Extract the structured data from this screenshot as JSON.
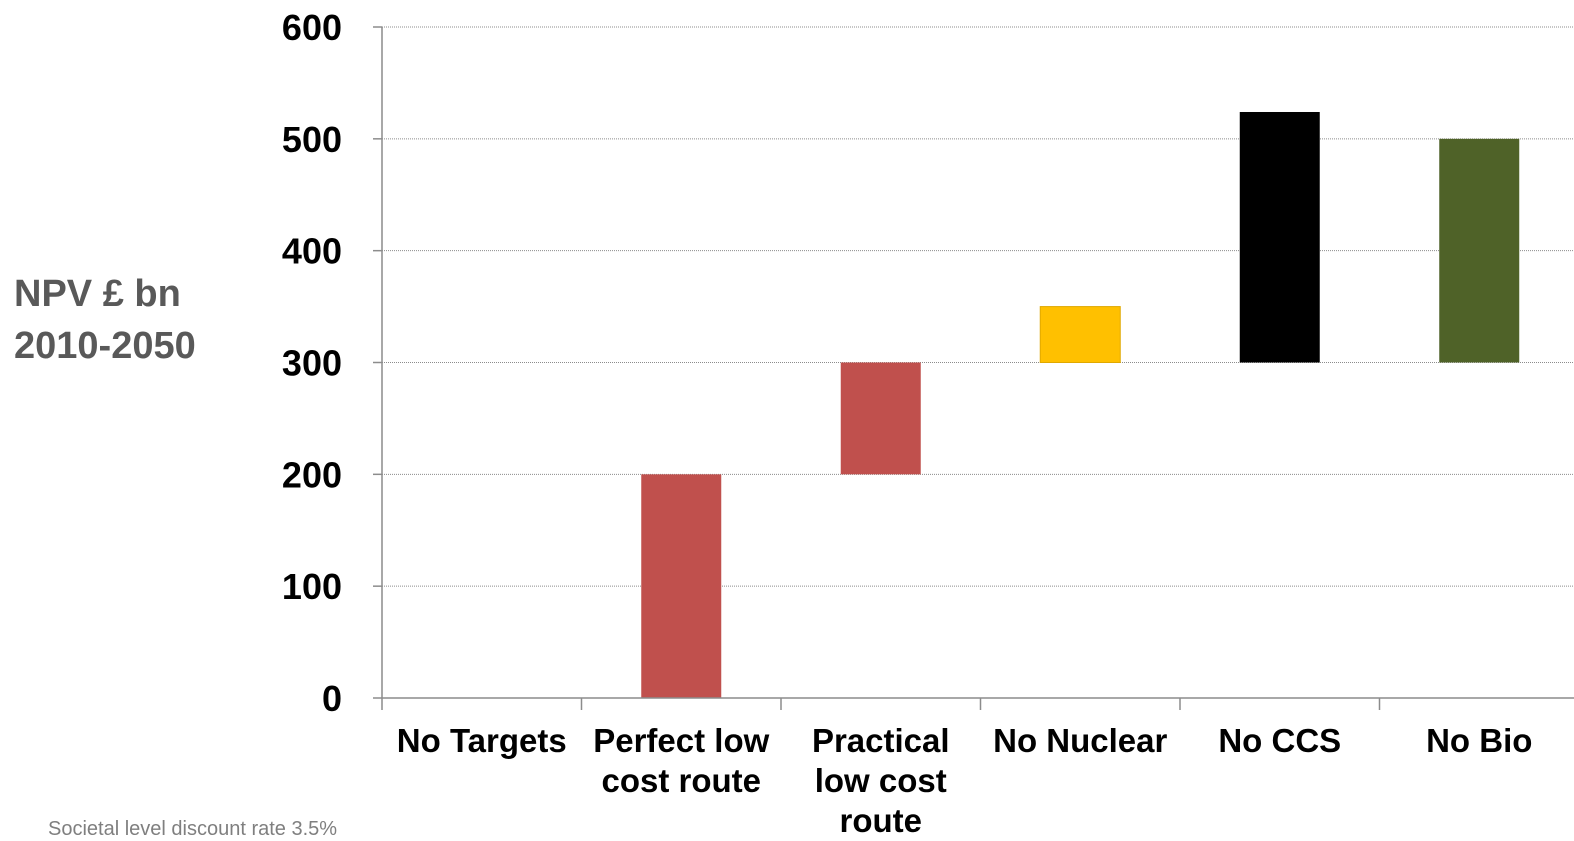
{
  "chart_data": {
    "type": "bar",
    "subtype": "waterfall",
    "ylabel": "NPV £ bn 2010-2050",
    "ylabel_lines": [
      "NPV £ bn",
      "2010-2050"
    ],
    "ylim": [
      0,
      600
    ],
    "yticks": [
      "0",
      "100",
      "200",
      "300",
      "400",
      "500",
      "600"
    ],
    "grid": true,
    "legend": "none",
    "categories": [
      "No Targets",
      "Perfect low cost route",
      "Practical low cost route",
      "No Nuclear",
      "No CCS",
      "No Bio"
    ],
    "category_lines": [
      [
        "No Targets"
      ],
      [
        "Perfect low",
        "cost route"
      ],
      [
        "Practical",
        "low cost",
        "route"
      ],
      [
        "No Nuclear"
      ],
      [
        "No CCS"
      ],
      [
        "No Bio"
      ]
    ],
    "bars": [
      {
        "category": "No Targets",
        "base": 0,
        "top": 0,
        "color": null
      },
      {
        "category": "Perfect low cost route",
        "base": 0,
        "top": 200,
        "color": "#C0504D"
      },
      {
        "category": "Practical low cost route",
        "base": 200,
        "top": 300,
        "color": "#C0504D"
      },
      {
        "category": "No Nuclear",
        "base": 300,
        "top": 350,
        "color": "#FFC000"
      },
      {
        "category": "No CCS",
        "base": 300,
        "top": 524,
        "color": "#000000"
      },
      {
        "category": "No Bio",
        "base": 300,
        "top": 500,
        "color": "#4F6228"
      }
    ]
  },
  "footnote": "Societal level discount rate 3.5%"
}
